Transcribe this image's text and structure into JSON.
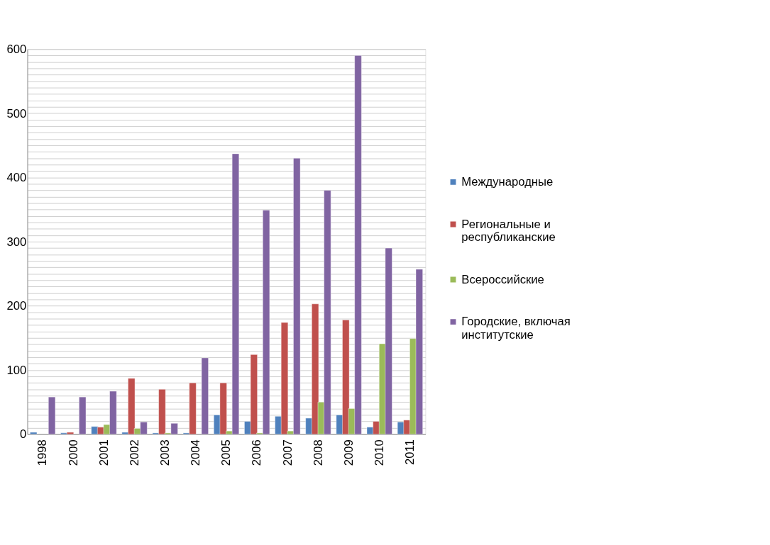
{
  "chart_data": {
    "type": "bar",
    "categories": [
      "1998",
      "2000",
      "2001",
      "2002",
      "2003",
      "2004",
      "2005",
      "2006",
      "2007",
      "2008",
      "2009",
      "2010",
      "2011"
    ],
    "series": [
      {
        "name": "Международные",
        "color": "#4f81bd",
        "values": [
          3,
          2,
          12,
          3,
          2,
          2,
          30,
          20,
          28,
          25,
          30,
          11,
          19
        ]
      },
      {
        "name": "Региональные и республиканские",
        "color": "#c0504d",
        "values": [
          null,
          3,
          11,
          87,
          70,
          80,
          80,
          124,
          174,
          203,
          178,
          20,
          22
        ]
      },
      {
        "name": "Всероссийские",
        "color": "#9bbb59",
        "values": [
          null,
          null,
          15,
          9,
          2,
          null,
          5,
          2,
          5,
          50,
          40,
          141,
          149
        ]
      },
      {
        "name": "Городские, включая институтские",
        "color": "#8064a2",
        "values": [
          58,
          58,
          67,
          19,
          17,
          119,
          437,
          349,
          430,
          380,
          590,
          290,
          257
        ]
      }
    ],
    "ylim": [
      0,
      600
    ],
    "yticks": [
      0,
      {
        "value": 10,
        "label": null
      },
      {
        "value": 20,
        "label": null
      },
      {
        "value": 30,
        "label": null
      },
      {
        "value": 40,
        "label": null
      },
      {
        "value": 50,
        "label": null
      },
      {
        "value": 60,
        "label": null
      },
      {
        "value": 70,
        "label": null
      },
      {
        "value": 80,
        "label": null
      },
      {
        "value": 90,
        "label": null
      },
      100,
      {
        "value": 110,
        "label": null
      },
      {
        "value": 120,
        "label": null
      },
      {
        "value": 130,
        "label": null
      },
      {
        "value": 140,
        "label": null
      },
      {
        "value": 150,
        "label": null
      },
      {
        "value": 160,
        "label": null
      },
      {
        "value": 170,
        "label": null
      },
      {
        "value": 180,
        "label": null
      },
      {
        "value": 190,
        "label": null
      },
      200,
      {
        "value": 210,
        "label": null
      },
      {
        "value": 220,
        "label": null
      },
      {
        "value": 230,
        "label": null
      },
      {
        "value": 240,
        "label": null
      },
      {
        "value": 250,
        "label": null
      },
      {
        "value": 260,
        "label": null
      },
      {
        "value": 270,
        "label": null
      },
      {
        "value": 280,
        "label": null
      },
      {
        "value": 290,
        "label": null
      },
      300,
      {
        "value": 310,
        "label": null
      },
      {
        "value": 320,
        "label": null
      },
      {
        "value": 330,
        "label": null
      },
      {
        "value": 340,
        "label": null
      },
      {
        "value": 350,
        "label": null
      },
      {
        "value": 360,
        "label": null
      },
      {
        "value": 370,
        "label": null
      },
      {
        "value": 380,
        "label": null
      },
      {
        "value": 390,
        "label": null
      },
      400,
      {
        "value": 410,
        "label": null
      },
      {
        "value": 420,
        "label": null
      },
      {
        "value": 430,
        "label": null
      },
      {
        "value": 440,
        "label": null
      },
      {
        "value": 450,
        "label": null
      },
      {
        "value": 460,
        "label": null
      },
      {
        "value": 470,
        "label": null
      },
      {
        "value": 480,
        "label": null
      },
      {
        "value": 490,
        "label": null
      },
      500,
      {
        "value": 510,
        "label": null
      },
      {
        "value": 520,
        "label": null
      },
      {
        "value": 530,
        "label": null
      },
      {
        "value": 540,
        "label": null
      },
      {
        "value": 550,
        "label": null
      },
      {
        "value": 560,
        "label": null
      },
      {
        "value": 570,
        "label": null
      },
      {
        "value": 580,
        "label": null
      },
      {
        "value": 590,
        "label": null
      },
      600
    ],
    "grid": "y",
    "legend": "right"
  }
}
